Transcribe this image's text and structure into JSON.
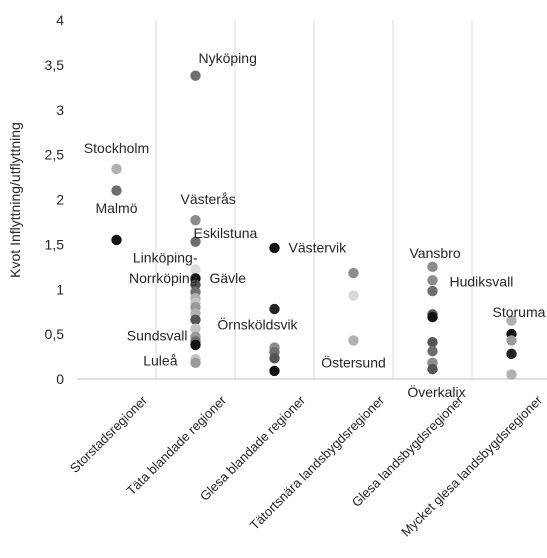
{
  "chart_data": {
    "type": "scatter",
    "title": "",
    "ylabel": "Kvot Inflyttning/utflyttning",
    "xlabel": "",
    "ylim": [
      0,
      4
    ],
    "yticks": [
      "0",
      "0,5",
      "1",
      "1,5",
      "2",
      "2,5",
      "3",
      "3,5",
      "4"
    ],
    "ytick_values": [
      0,
      0.5,
      1,
      1.5,
      2,
      2.5,
      3,
      3.5,
      4
    ],
    "grid": "vertical-category-separators",
    "legend": "none",
    "categories": [
      "Storstadsregioner",
      "Täta blandade regioner",
      "Glesa blandade regioner",
      "Tätortsnära landsbygdsregioner",
      "Glesa landsbygdsregioner",
      "Mycket glesa landsbygdsregioner"
    ],
    "points": [
      {
        "category": 0,
        "y": 2.34,
        "color": "#b0b0b0"
      },
      {
        "category": 0,
        "y": 2.1,
        "color": "#6e6e6e"
      },
      {
        "category": 0,
        "y": 1.55,
        "color": "#111111"
      },
      {
        "category": 1,
        "y": 3.38,
        "color": "#6e6e6e"
      },
      {
        "category": 1,
        "y": 1.77,
        "color": "#8c8c8c"
      },
      {
        "category": 1,
        "y": 1.53,
        "color": "#6e6e6e"
      },
      {
        "category": 1,
        "y": 1.22,
        "color": "#dcdcdc"
      },
      {
        "category": 1,
        "y": 1.12,
        "color": "#111111"
      },
      {
        "category": 1,
        "y": 1.05,
        "color": "#555555"
      },
      {
        "category": 1,
        "y": 0.97,
        "color": "#6e6e6e"
      },
      {
        "category": 1,
        "y": 0.9,
        "color": "#b0b0b0"
      },
      {
        "category": 1,
        "y": 0.85,
        "color": "#c4c4c4"
      },
      {
        "category": 1,
        "y": 0.8,
        "color": "#9a9a9a"
      },
      {
        "category": 1,
        "y": 0.73,
        "color": "#b0b0b0"
      },
      {
        "category": 1,
        "y": 0.66,
        "color": "#555555"
      },
      {
        "category": 1,
        "y": 0.56,
        "color": "#c4c4c4"
      },
      {
        "category": 1,
        "y": 0.47,
        "color": "#9a9a9a"
      },
      {
        "category": 1,
        "y": 0.42,
        "color": "#6e6e6e"
      },
      {
        "category": 1,
        "y": 0.38,
        "color": "#111111"
      },
      {
        "category": 1,
        "y": 0.22,
        "color": "#c4c4c4"
      },
      {
        "category": 1,
        "y": 0.18,
        "color": "#9a9a9a"
      },
      {
        "category": 2,
        "y": 1.46,
        "color": "#111111"
      },
      {
        "category": 2,
        "y": 0.78,
        "color": "#222222"
      },
      {
        "category": 2,
        "y": 0.35,
        "color": "#8c8c8c"
      },
      {
        "category": 2,
        "y": 0.3,
        "color": "#6e6e6e"
      },
      {
        "category": 2,
        "y": 0.23,
        "color": "#555555"
      },
      {
        "category": 2,
        "y": 0.09,
        "color": "#111111"
      },
      {
        "category": 3,
        "y": 1.18,
        "color": "#8c8c8c"
      },
      {
        "category": 3,
        "y": 0.93,
        "color": "#d9d9d9"
      },
      {
        "category": 3,
        "y": 0.43,
        "color": "#b0b0b0"
      },
      {
        "category": 4,
        "y": 1.25,
        "color": "#8c8c8c"
      },
      {
        "category": 4,
        "y": 1.1,
        "color": "#8c8c8c"
      },
      {
        "category": 4,
        "y": 0.98,
        "color": "#6e6e6e"
      },
      {
        "category": 4,
        "y": 0.72,
        "color": "#555555"
      },
      {
        "category": 4,
        "y": 0.69,
        "color": "#111111"
      },
      {
        "category": 4,
        "y": 0.41,
        "color": "#555555"
      },
      {
        "category": 4,
        "y": 0.31,
        "color": "#6e6e6e"
      },
      {
        "category": 4,
        "y": 0.18,
        "color": "#8c8c8c"
      },
      {
        "category": 4,
        "y": 0.11,
        "color": "#555555"
      },
      {
        "category": 5,
        "y": 0.65,
        "color": "#b0b0b0"
      },
      {
        "category": 5,
        "y": 0.5,
        "color": "#111111"
      },
      {
        "category": 5,
        "y": 0.43,
        "color": "#9a9a9a"
      },
      {
        "category": 5,
        "y": 0.28,
        "color": "#222222"
      },
      {
        "category": 5,
        "y": 0.05,
        "color": "#b0b0b0"
      }
    ],
    "annotations": [
      {
        "text": "Stockholm",
        "category": 0,
        "y": 2.52,
        "anchor": "middle",
        "dx": 0
      },
      {
        "text": "Malmö",
        "category": 0,
        "y": 1.85,
        "anchor": "middle",
        "dx": 0
      },
      {
        "text": "Nyköping",
        "category": 1,
        "y": 3.52,
        "anchor": "start",
        "dx": 3
      },
      {
        "text": "Västerås",
        "category": 1,
        "y": 1.95,
        "anchor": "start",
        "dx": -15
      },
      {
        "text": "Eskilstuna",
        "category": 1,
        "y": 1.57,
        "anchor": "start",
        "dx": -2
      },
      {
        "text": "Linköping-",
        "category": 1,
        "y": 1.3,
        "anchor": "end",
        "dx": 2
      },
      {
        "text": "Norrköping",
        "category": 1,
        "y": 1.07,
        "anchor": "end",
        "dx": 2
      },
      {
        "text": "Gävle",
        "category": 1,
        "y": 1.07,
        "anchor": "start",
        "dx": 14
      },
      {
        "text": "Sundsvall",
        "category": 1,
        "y": 0.43,
        "anchor": "end",
        "dx": -8
      },
      {
        "text": "Luleå",
        "category": 1,
        "y": 0.15,
        "anchor": "end",
        "dx": -18
      },
      {
        "text": "Västervik",
        "category": 2,
        "y": 1.41,
        "anchor": "start",
        "dx": 14
      },
      {
        "text": "Örnsköldsvik",
        "category": 2,
        "y": 0.55,
        "anchor": "middle",
        "dx": -17
      },
      {
        "text": "Östersund",
        "category": 3,
        "y": 0.13,
        "anchor": "middle",
        "dx": 0
      },
      {
        "text": "Vansbro",
        "category": 4,
        "y": 1.35,
        "anchor": "start",
        "dx": -23
      },
      {
        "text": "Hudiksvall",
        "category": 4,
        "y": 1.03,
        "anchor": "start",
        "dx": 17
      },
      {
        "text": "Överkalix",
        "category": 4,
        "y": -0.2,
        "anchor": "middle",
        "dx": 4
      },
      {
        "text": "Storuma",
        "category": 5,
        "y": 0.69,
        "anchor": "start",
        "dx": -19
      }
    ]
  }
}
